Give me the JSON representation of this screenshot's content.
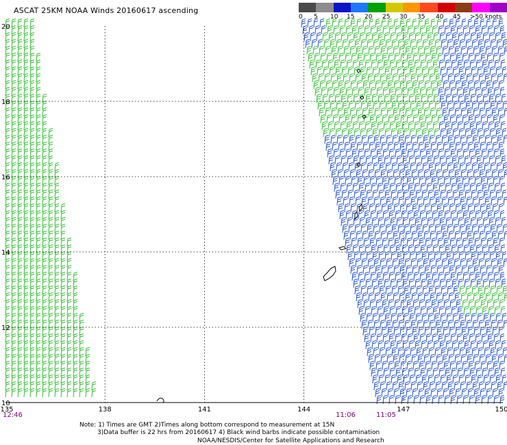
{
  "title": "ASCAT 25KM NOAA Winds 20160617 ascending",
  "legend": {
    "labels": [
      "0",
      "5",
      "10",
      "15",
      "20",
      "25",
      "30",
      "35",
      "40",
      "45",
      ">50 knots"
    ],
    "colors": [
      "#4a4a4a",
      "#8c8c8c",
      "#0a14c8",
      "#1e78ff",
      "#00a000",
      "#d2c800",
      "#ff9600",
      "#ff4a1e",
      "#d20000",
      "#8c3c14",
      "#ff00ff",
      "#a000c8"
    ]
  },
  "map": {
    "lon_labels": [
      "135",
      "138",
      "141",
      "144",
      "147",
      "150"
    ],
    "lat_labels": [
      "20",
      "18",
      "16",
      "14",
      "12",
      "10"
    ],
    "land_color": "#000000",
    "grid_color": "#000000"
  },
  "swath_times": [
    {
      "label": "12:46",
      "color": "#800080"
    },
    {
      "label": "11:06",
      "color": "#800080"
    },
    {
      "label": "11:05",
      "color": "#800080"
    }
  ],
  "wind_barbs": {
    "west_swath_color": "#2fbf2f",
    "east_swath_color": "#1f4fd6",
    "east_swath_north_color": "#2fbf2f"
  },
  "notes": {
    "line1": "Note: 1) Times are GMT 2)Times along bottom correspond to measurement at 15N",
    "line2": "3)Data buffer is 22 hrs from 20160617 4) Black wind barbs indicate possible contamination",
    "credit": "NOAA/NESDIS/Center for Satellite Applications and Research"
  }
}
